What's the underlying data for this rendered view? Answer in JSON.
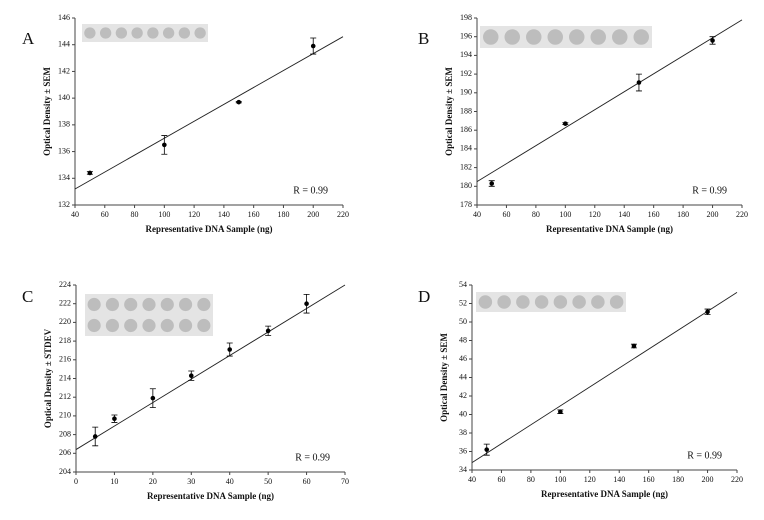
{
  "chart_data": [
    {
      "type": "scatter",
      "panel_label": "A",
      "xlabel": "Representative DNA Sample (ng)",
      "ylabel": "Optical Density ± SEM",
      "annotation": "R = 0.99",
      "color": "#000000",
      "x": [
        50,
        100,
        150,
        200
      ],
      "values": [
        134.4,
        136.5,
        139.7,
        143.9
      ],
      "errors": [
        0.1,
        0.7,
        0.05,
        0.6
      ],
      "trendline": {
        "x": [
          40,
          220
        ],
        "values": [
          133.2,
          144.6
        ]
      },
      "xlim": [
        40,
        220
      ],
      "xticks": [
        40,
        60,
        80,
        100,
        120,
        140,
        160,
        180,
        200,
        220
      ],
      "ylim": [
        132,
        146
      ],
      "yticks": [
        132,
        134,
        136,
        138,
        140,
        142,
        144,
        146
      ]
    },
    {
      "type": "scatter",
      "panel_label": "B",
      "xlabel": "Representative DNA Sample (ng)",
      "ylabel": "Optical Density ± SEM",
      "annotation": "R = 0.99",
      "color": "#000000",
      "x": [
        50,
        100,
        150,
        200
      ],
      "values": [
        180.3,
        186.7,
        191.1,
        195.6
      ],
      "errors": [
        0.3,
        0.1,
        0.9,
        0.4
      ],
      "trendline": {
        "x": [
          40,
          220
        ],
        "values": [
          180.5,
          197.8
        ]
      },
      "xlim": [
        40,
        220
      ],
      "xticks": [
        40,
        60,
        80,
        100,
        120,
        140,
        160,
        180,
        200,
        220
      ],
      "ylim": [
        178,
        198
      ],
      "yticks": [
        178,
        180,
        182,
        184,
        186,
        188,
        190,
        192,
        194,
        196,
        198
      ]
    },
    {
      "type": "scatter",
      "panel_label": "C",
      "xlabel": "Representative DNA Sample (ng)",
      "ylabel": "Optical Density ± STDEV",
      "annotation": "R = 0.99",
      "color": "#000000",
      "x": [
        5,
        10,
        20,
        30,
        40,
        50,
        60
      ],
      "values": [
        207.8,
        209.7,
        211.9,
        214.3,
        217.1,
        219.1,
        222.0
      ],
      "errors": [
        1.0,
        0.4,
        1.0,
        0.5,
        0.7,
        0.5,
        1.0
      ],
      "trendline": {
        "x": [
          0,
          70
        ],
        "values": [
          206.4,
          224
        ]
      },
      "xlim": [
        0,
        70
      ],
      "xticks": [
        0,
        10,
        20,
        30,
        40,
        50,
        60,
        70
      ],
      "ylim": [
        204,
        224
      ],
      "yticks": [
        204,
        206,
        208,
        210,
        212,
        214,
        216,
        218,
        220,
        222,
        224
      ]
    },
    {
      "type": "scatter",
      "panel_label": "D",
      "xlabel": "Representative DNA Sample (ng)",
      "ylabel": "Optical Density ± SEM",
      "annotation": "R = 0.99",
      "color": "#000000",
      "x": [
        50,
        100,
        150,
        200
      ],
      "values": [
        36.2,
        40.3,
        47.4,
        51.1
      ],
      "errors": [
        0.6,
        0.2,
        0.2,
        0.3
      ],
      "trendline": {
        "x": [
          40,
          220
        ],
        "values": [
          34.8,
          53.2
        ]
      },
      "xlim": [
        40,
        220
      ],
      "xticks": [
        40,
        60,
        80,
        100,
        120,
        140,
        160,
        180,
        200,
        220
      ],
      "ylim": [
        34,
        54
      ],
      "yticks": [
        34,
        36,
        38,
        40,
        42,
        44,
        46,
        48,
        50,
        52,
        54
      ]
    }
  ]
}
